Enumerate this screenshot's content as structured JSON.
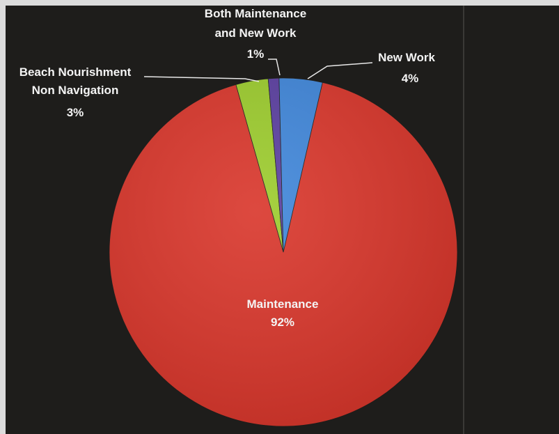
{
  "chart_data": {
    "type": "pie",
    "slices": [
      {
        "name": "Maintenance",
        "value": 92,
        "label": "92%",
        "color": "#d9352a"
      },
      {
        "name": "Beach Nourishment Non Navigation",
        "value": 3,
        "label": "3%",
        "color": "#9ccc2c"
      },
      {
        "name": "Both Maintenance and New Work",
        "value": 1,
        "label": "1%",
        "color": "#5a3ea0"
      },
      {
        "name": "New Work",
        "value": 4,
        "label": "4%",
        "color": "#3f86da"
      }
    ],
    "labels": {
      "maintenance": {
        "line1": "Maintenance",
        "line2": "92%"
      },
      "beach": {
        "line1": "Beach Nourishment",
        "line2": "Non Navigation",
        "line3": "3%"
      },
      "both": {
        "line1": "Both Maintenance",
        "line2": "and New Work",
        "line3": "1%"
      },
      "newwork": {
        "line1": "New Work",
        "line2": "4%"
      }
    },
    "colors": {
      "background": "#1e1d1b",
      "label_text": "#f4f4f4"
    }
  }
}
